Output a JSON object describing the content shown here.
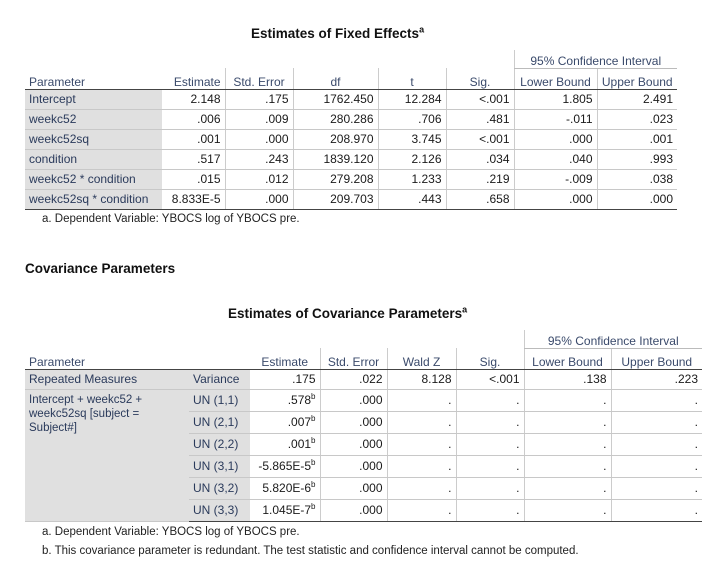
{
  "fixed": {
    "title": "Estimates of Fixed Effects",
    "title_sup": "a",
    "ci_header": "95% Confidence Interval",
    "columns": [
      "Parameter",
      "Estimate",
      "Std. Error",
      "df",
      "t",
      "Sig.",
      "Lower Bound",
      "Upper Bound"
    ],
    "rows": [
      {
        "param": "Intercept",
        "est": "2.148",
        "se": ".175",
        "df": "1762.450",
        "t": "12.284",
        "sig": "<.001",
        "lb": "1.805",
        "ub": "2.491"
      },
      {
        "param": "weekc52",
        "est": ".006",
        "se": ".009",
        "df": "280.286",
        "t": ".706",
        "sig": ".481",
        "lb": "-.011",
        "ub": ".023"
      },
      {
        "param": "weekc52sq",
        "est": ".001",
        "se": ".000",
        "df": "208.970",
        "t": "3.745",
        "sig": "<.001",
        "lb": ".000",
        "ub": ".001"
      },
      {
        "param": "condition",
        "est": ".517",
        "se": ".243",
        "df": "1839.120",
        "t": "2.126",
        "sig": ".034",
        "lb": ".040",
        "ub": ".993"
      },
      {
        "param": "weekc52 * condition",
        "est": ".015",
        "se": ".012",
        "df": "279.208",
        "t": "1.233",
        "sig": ".219",
        "lb": "-.009",
        "ub": ".038"
      },
      {
        "param": "weekc52sq * condition",
        "est": "8.833E-5",
        "se": ".000",
        "df": "209.703",
        "t": ".443",
        "sig": ".658",
        "lb": ".000",
        "ub": ".000"
      }
    ],
    "footnote_a": "a. Dependent Variable: YBOCS log of YBOCS pre."
  },
  "section_title": "Covariance Parameters",
  "cov": {
    "title": "Estimates of Covariance Parameters",
    "title_sup": "a",
    "ci_header": "95% Confidence Interval",
    "columns": [
      "Parameter",
      "",
      "Estimate",
      "Std. Error",
      "Wald Z",
      "Sig.",
      "Lower Bound",
      "Upper Bound"
    ],
    "repeated": {
      "param": "Repeated Measures",
      "sub": "Variance",
      "est": ".175",
      "se": ".022",
      "z": "8.128",
      "sig": "<.001",
      "lb": ".138",
      "ub": ".223"
    },
    "group_label_1": "Intercept + weekc52 +",
    "group_label_2": "weekc52sq [subject =",
    "group_label_3": "Subject#]",
    "un_rows": [
      {
        "sub": "UN (1,1)",
        "est": ".578",
        "sup": "b",
        "se": ".000",
        "z": ".",
        "sig": ".",
        "lb": ".",
        "ub": "."
      },
      {
        "sub": "UN (2,1)",
        "est": ".007",
        "sup": "b",
        "se": ".000",
        "z": ".",
        "sig": ".",
        "lb": ".",
        "ub": "."
      },
      {
        "sub": "UN (2,2)",
        "est": ".001",
        "sup": "b",
        "se": ".000",
        "z": ".",
        "sig": ".",
        "lb": ".",
        "ub": "."
      },
      {
        "sub": "UN (3,1)",
        "est": "-5.865E-5",
        "sup": "b",
        "se": ".000",
        "z": ".",
        "sig": ".",
        "lb": ".",
        "ub": "."
      },
      {
        "sub": "UN (3,2)",
        "est": "5.820E-6",
        "sup": "b",
        "se": ".000",
        "z": ".",
        "sig": ".",
        "lb": ".",
        "ub": "."
      },
      {
        "sub": "UN (3,3)",
        "est": "1.045E-7",
        "sup": "b",
        "se": ".000",
        "z": ".",
        "sig": ".",
        "lb": ".",
        "ub": "."
      }
    ],
    "footnote_a": "a. Dependent Variable: YBOCS log of YBOCS pre.",
    "footnote_b": "b. This covariance parameter is redundant. The test statistic and confidence interval cannot be computed."
  }
}
